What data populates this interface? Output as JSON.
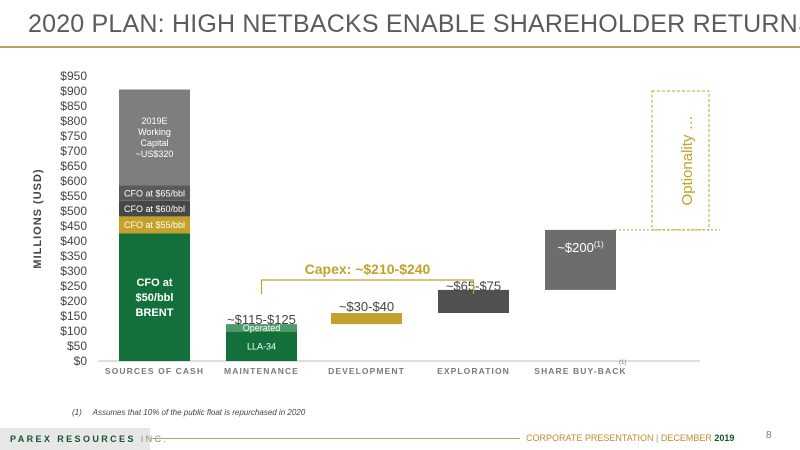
{
  "header": {
    "title": "2020 PLAN: HIGH NETBACKS ENABLE SHAREHOLDER RETURNS"
  },
  "chart_data": {
    "type": "bar",
    "ylabel": "MILLIONS (USD)",
    "ylim": [
      0,
      950
    ],
    "y_ticks": [
      "$0",
      "$50",
      "$100",
      "$150",
      "$200",
      "$250",
      "$300",
      "$350",
      "$400",
      "$450",
      "$500",
      "$550",
      "$600",
      "$650",
      "$700",
      "$750",
      "$800",
      "$850",
      "$900",
      "$950"
    ],
    "categories": [
      "SOURCES OF CASH",
      "MAINTENANCE",
      "DEVELOPMENT",
      "EXPLORATION",
      "SHARE BUY-BACK"
    ],
    "category_superscripts": {
      "share_buyback": "(1)"
    },
    "segments": [
      {
        "category": 0,
        "start": 0,
        "end": 425,
        "color": "#14703b",
        "label": "CFO at\n$50/bbl\nBRENT",
        "label_color": "#ffffff",
        "bold": true
      },
      {
        "category": 0,
        "start": 425,
        "end": 482,
        "color": "#c3a12a",
        "label": "CFO at $55/bbl",
        "label_color": "#ffffff"
      },
      {
        "category": 0,
        "start": 482,
        "end": 534,
        "color": "#474747",
        "label": "CFO at $60/bbl",
        "label_color": "#ffffff"
      },
      {
        "category": 0,
        "start": 534,
        "end": 585,
        "color": "#5a5a5a",
        "label": "CFO at $65/bbl",
        "label_color": "#ffffff"
      },
      {
        "category": 0,
        "start": 585,
        "end": 905,
        "color": "#7e7e7e",
        "label": "2019E\nWorking\nCapital\n~US$320",
        "label_color": "#ffffff"
      },
      {
        "category": 1,
        "start": 0,
        "end": 98,
        "color": "#14703b",
        "label": "LLA-34",
        "label_color": "#ffffff"
      },
      {
        "category": 1,
        "start": 98,
        "end": 123,
        "color": "#4f9a6b",
        "label": "Operated",
        "label_color": "#ffffff"
      },
      {
        "category": 2,
        "start": 123,
        "end": 160,
        "color": "#c3a12a",
        "label": "",
        "label_color": "#ffffff"
      },
      {
        "category": 3,
        "start": 160,
        "end": 237,
        "color": "#505050",
        "label": "",
        "label_color": "#ffffff"
      },
      {
        "category": 4,
        "start": 237,
        "end": 437,
        "color": "#6d6d6d",
        "label": "",
        "label_color": "#ffffff"
      }
    ],
    "value_labels": [
      {
        "category": 1,
        "text": "~$115-$125",
        "sup": "",
        "y": 140,
        "color": "#444444"
      },
      {
        "category": 2,
        "text": "~$30-$40",
        "sup": "",
        "y": 183,
        "color": "#444444"
      },
      {
        "category": 3,
        "text": "~$65-$75",
        "sup": "",
        "y": 252,
        "color": "#444444"
      },
      {
        "category": 4,
        "text": "~$200",
        "sup": "(1)",
        "y": 380,
        "color": "#ffffff"
      }
    ],
    "capex_bracket": {
      "label": "Capex: ~$210-$240",
      "from_category": 1,
      "to_category": 3,
      "y": 320,
      "color": "#c3a12a"
    },
    "optionality": {
      "label": "Optionality …",
      "start": 437,
      "end": 900,
      "color": "#c3a12a"
    },
    "dashed_line_value": 437
  },
  "footnote": {
    "marker": "(1)",
    "text": "Assumes that 10% of the public float is repurchased  in 2020"
  },
  "footer": {
    "company_brand": "PAREX RESOURCES",
    "company_suffix": " INC.",
    "presentation": "CORPORATE PRESENTATION",
    "separator": "  |  ",
    "month": "DECEMBER ",
    "year": "2019",
    "page_number": "8"
  }
}
